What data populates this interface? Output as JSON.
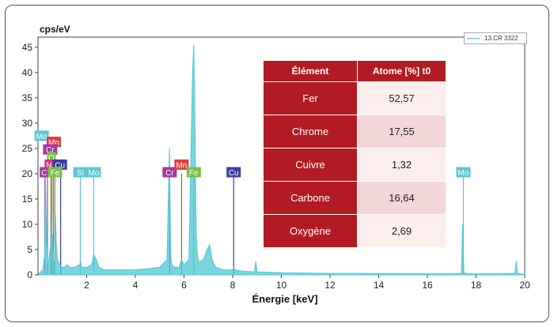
{
  "chart_data": {
    "type": "line",
    "ylabel": "cps/eV",
    "xlabel": "Énergie [keV]",
    "xlim": [
      0,
      20
    ],
    "ylim": [
      0,
      47
    ],
    "x_ticks": [
      2,
      4,
      6,
      8,
      10,
      12,
      14,
      16,
      18,
      20
    ],
    "y_ticks": [
      0,
      5,
      10,
      15,
      20,
      25,
      30,
      35,
      40,
      45
    ],
    "grid": false,
    "legend_position": "top-right",
    "series": [
      {
        "name": "13.CR 3322",
        "color": "#4fc6d8",
        "x": [
          0.05,
          0.2,
          0.28,
          0.3,
          0.35,
          0.4,
          0.45,
          0.52,
          0.55,
          0.58,
          0.6,
          0.64,
          0.68,
          0.7,
          0.72,
          0.75,
          0.8,
          0.9,
          1.0,
          1.1,
          1.2,
          1.3,
          1.5,
          1.7,
          1.75,
          1.8,
          2.0,
          2.2,
          2.3,
          2.4,
          2.5,
          2.7,
          3.0,
          3.5,
          4.0,
          4.5,
          5.0,
          5.3,
          5.4,
          5.45,
          5.5,
          5.6,
          5.8,
          5.9,
          5.95,
          6.0,
          6.1,
          6.2,
          6.35,
          6.4,
          6.45,
          6.5,
          6.55,
          6.6,
          6.8,
          6.95,
          7.05,
          7.15,
          7.3,
          7.6,
          8.0,
          8.05,
          8.1,
          8.3,
          8.6,
          8.9,
          8.95,
          9.0,
          9.5,
          10,
          11,
          12,
          13,
          14,
          15,
          16,
          17,
          17.4,
          17.45,
          17.5,
          17.55,
          17.7,
          18,
          19,
          19.6,
          19.65,
          19.7,
          20
        ],
        "y": [
          0.3,
          1,
          4,
          20,
          8,
          2,
          3,
          6,
          12,
          4,
          8,
          3,
          2,
          3,
          12,
          6,
          3,
          2,
          1.5,
          1.5,
          2,
          1.5,
          1.5,
          2,
          2.5,
          1.5,
          1.5,
          2,
          4,
          3,
          1.5,
          1,
          1,
          1,
          1,
          1.2,
          1.5,
          3,
          25,
          4,
          2,
          1.5,
          1.5,
          3,
          2.5,
          2,
          2.5,
          3,
          40,
          45.5,
          30,
          8,
          4,
          2.5,
          3,
          5,
          6,
          3,
          1.5,
          1,
          1,
          1.5,
          1,
          0.8,
          0.7,
          0.6,
          2.7,
          0.6,
          0.5,
          0.4,
          0.35,
          0.3,
          0.3,
          0.25,
          0.25,
          0.2,
          0.2,
          0.3,
          10,
          0.5,
          0.3,
          0.2,
          0.2,
          0.2,
          0.3,
          2.8,
          0.3,
          0.1
        ]
      }
    ],
    "peak_labels": [
      {
        "text": "Mo",
        "x": 0.15,
        "y": 27.5,
        "color": "#5bc8d4"
      },
      {
        "text": "Mn",
        "x": 0.65,
        "y": 26.3,
        "color": "#e03c3c"
      },
      {
        "text": "Cr",
        "x": 0.5,
        "y": 24.8,
        "color": "#a23a9c"
      },
      {
        "text": "O",
        "x": 0.55,
        "y": 23.3,
        "color": "#7ac142"
      },
      {
        "text": "N",
        "x": 0.45,
        "y": 21.8,
        "color": "#d4358a"
      },
      {
        "text": "Cu",
        "x": 0.9,
        "y": 21.8,
        "color": "#3a3f9c"
      },
      {
        "text": "C",
        "x": 0.25,
        "y": 20.3,
        "color": "#a23a9c"
      },
      {
        "text": "Fe",
        "x": 0.7,
        "y": 20.3,
        "color": "#7ac142"
      },
      {
        "text": "Si",
        "x": 1.74,
        "y": 20.3,
        "color": "#5bc8d4"
      },
      {
        "text": "Mo",
        "x": 2.29,
        "y": 20.3,
        "color": "#5bc8d4"
      },
      {
        "text": "Cr",
        "x": 5.41,
        "y": 20.3,
        "color": "#a23a9c"
      },
      {
        "text": "Mn",
        "x": 5.9,
        "y": 21.8,
        "color": "#e03c3c"
      },
      {
        "text": "Fe",
        "x": 6.4,
        "y": 20.3,
        "color": "#7ac142"
      },
      {
        "text": "Cu",
        "x": 8.04,
        "y": 20.3,
        "color": "#3a3f9c"
      },
      {
        "text": "Mo",
        "x": 17.48,
        "y": 20.3,
        "color": "#5bc8d4"
      }
    ],
    "marker_lines": [
      {
        "x": 0.28,
        "color": "#a23a9c"
      },
      {
        "x": 0.39,
        "color": "#d4358a"
      },
      {
        "x": 0.52,
        "color": "#7ac142"
      },
      {
        "x": 0.57,
        "color": "#a23a9c"
      },
      {
        "x": 0.64,
        "color": "#e03c3c"
      },
      {
        "x": 0.7,
        "color": "#7ac142"
      },
      {
        "x": 0.93,
        "color": "#3a3f9c"
      },
      {
        "x": 1.74,
        "color": "#5bc8d4"
      },
      {
        "x": 2.29,
        "color": "#5bc8d4"
      },
      {
        "x": 5.41,
        "color": "#a23a9c"
      },
      {
        "x": 5.9,
        "color": "#e03c3c"
      },
      {
        "x": 6.4,
        "color": "#7ac142"
      },
      {
        "x": 8.04,
        "color": "#3a3f9c"
      },
      {
        "x": 17.48,
        "color": "#5bc8d4"
      }
    ]
  },
  "table": {
    "headers": [
      "Élément",
      "Atome [%] t0"
    ],
    "rows": [
      {
        "element": "Fer",
        "value": "52,57",
        "bg": "#fbeeed"
      },
      {
        "element": "Chrome",
        "value": "17,55",
        "bg": "#f2d6d8"
      },
      {
        "element": "Cuivre",
        "value": "1,32",
        "bg": "#fbeeed"
      },
      {
        "element": "Carbone",
        "value": "16,64",
        "bg": "#f2d6d8"
      },
      {
        "element": "Oxygène",
        "value": "2,69",
        "bg": "#fbeeed"
      }
    ]
  }
}
